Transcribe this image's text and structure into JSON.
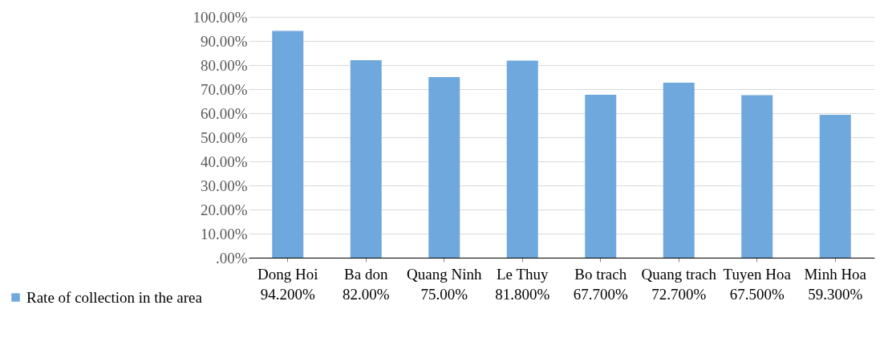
{
  "chart_data": {
    "type": "bar",
    "categories": [
      "Dong Hoi",
      "Ba don",
      "Quang Ninh",
      "Le Thuy",
      "Bo trach",
      "Quang trach",
      "Tuyen Hoa",
      "Minh Hoa"
    ],
    "series": [
      {
        "name": "Rate of collection in the area",
        "color": "#6fa8dc",
        "values": [
          94.2,
          82.0,
          75.0,
          81.8,
          67.7,
          72.7,
          67.5,
          59.3
        ],
        "value_labels": [
          "94.200%",
          "82.00%",
          "75.00%",
          "81.800%",
          "67.700%",
          "72.700%",
          "67.500%",
          "59.300%"
        ]
      }
    ],
    "ylim": [
      0,
      100
    ],
    "yticks": [
      {
        "value": 0,
        "label": ".00%"
      },
      {
        "value": 10,
        "label": "10.00%"
      },
      {
        "value": 20,
        "label": "20.00%"
      },
      {
        "value": 30,
        "label": "30.00%"
      },
      {
        "value": 40,
        "label": "40.00%"
      },
      {
        "value": 50,
        "label": "50.00%"
      },
      {
        "value": 60,
        "label": "60.00%"
      },
      {
        "value": 70,
        "label": "70.00%"
      },
      {
        "value": 80,
        "label": "80.00%"
      },
      {
        "value": 90,
        "label": "90.00%"
      },
      {
        "value": 100,
        "label": "100.00%"
      }
    ],
    "grid": "y",
    "legend": "bottom left"
  }
}
